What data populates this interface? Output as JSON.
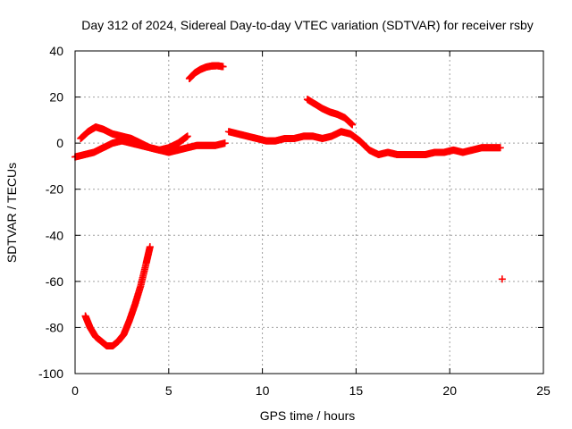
{
  "chart_data": {
    "type": "scatter",
    "title": "Day 312 of 2024, Sidereal Day-to-day VTEC variation (SDTVAR) for receiver rsby",
    "xlabel": "GPS time / hours",
    "ylabel": "SDTVAR / TECUs",
    "xlim": [
      0,
      25
    ],
    "ylim": [
      -100,
      40
    ],
    "xticks": [
      0,
      5,
      10,
      15,
      20,
      25
    ],
    "yticks": [
      -100,
      -80,
      -60,
      -40,
      -20,
      0,
      20,
      40
    ],
    "grid": true,
    "marker": "+",
    "color": "#ff0000",
    "series": [
      {
        "name": "main-band-a",
        "x": [
          0.0,
          0.5,
          1.0,
          1.5,
          2.0,
          2.5,
          3.0,
          3.5,
          4.0,
          4.5,
          5.0,
          5.5,
          6.0,
          6.5,
          7.0,
          7.5,
          8.0
        ],
        "y": [
          -6,
          -5,
          -4,
          -2,
          0,
          1,
          0,
          -1,
          -2,
          -3,
          -4,
          -3,
          -2,
          -1,
          -1,
          -1,
          0
        ]
      },
      {
        "name": "main-band-b",
        "x": [
          0.3,
          0.7,
          1.1,
          1.5,
          2.0,
          2.5,
          3.0,
          3.5,
          4.0,
          4.5,
          5.0,
          5.5,
          6.0
        ],
        "y": [
          2,
          5,
          7,
          6,
          4,
          3,
          2,
          0,
          -2,
          -3,
          -2,
          0,
          3
        ]
      },
      {
        "name": "main-band-c",
        "x": [
          8.2,
          8.7,
          9.2,
          9.7,
          10.2,
          10.7,
          11.2,
          11.7,
          12.2,
          12.7,
          13.2,
          13.7,
          14.2,
          14.7,
          15.2,
          15.7,
          16.2,
          16.7,
          17.2,
          17.7,
          18.2,
          18.7,
          19.2,
          19.7,
          20.2,
          20.7,
          21.2,
          21.7,
          22.2,
          22.7
        ],
        "y": [
          5,
          4,
          3,
          2,
          1,
          1,
          2,
          2,
          3,
          3,
          2,
          3,
          5,
          4,
          1,
          -3,
          -5,
          -4,
          -5,
          -5,
          -5,
          -5,
          -4,
          -4,
          -3,
          -4,
          -3,
          -2,
          -2,
          -2
        ]
      },
      {
        "name": "arc-high",
        "x": [
          6.1,
          6.4,
          6.7,
          7.0,
          7.3,
          7.6,
          7.9
        ],
        "y": [
          28,
          30.5,
          32,
          33,
          33.5,
          33.6,
          33.2
        ]
      },
      {
        "name": "arc-descending",
        "x": [
          12.4,
          12.8,
          13.2,
          13.6,
          14.0,
          14.4,
          14.8
        ],
        "y": [
          19,
          17,
          15,
          13.5,
          12.5,
          11,
          8
        ]
      },
      {
        "name": "deep-u",
        "x": [
          0.55,
          0.8,
          1.1,
          1.4,
          1.7,
          2.0,
          2.3,
          2.6,
          2.9,
          3.2,
          3.5,
          3.8,
          4.0
        ],
        "y": [
          -75,
          -80,
          -84,
          -86,
          -88,
          -88,
          -86,
          -83,
          -77,
          -70,
          -62,
          -52,
          -45
        ]
      },
      {
        "name": "outlier",
        "x": [
          22.8
        ],
        "y": [
          -59
        ]
      }
    ]
  }
}
